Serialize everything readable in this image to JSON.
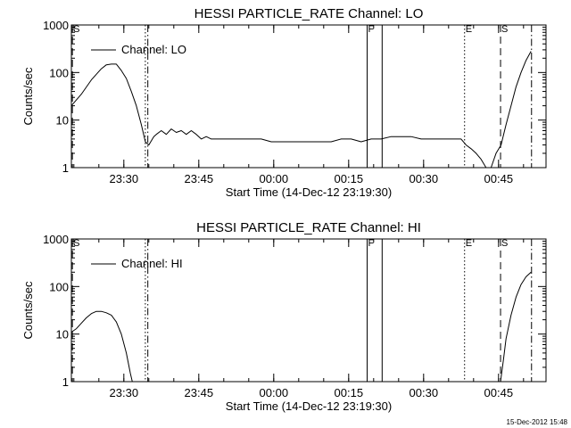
{
  "stamp": "15-Dec-2012 15:48",
  "chart_data": [
    {
      "type": "line",
      "title": "HESSI PARTICLE_RATE Channel: LO",
      "xlabel": "Start Time (14-Dec-12 23:19:30)",
      "ylabel": "Counts/sec",
      "y_scale": "log",
      "ylim": [
        1,
        1000
      ],
      "xlim_minutes": [
        0,
        95
      ],
      "x_ticks": [
        {
          "m": 10.5,
          "label": "23:30"
        },
        {
          "m": 25.5,
          "label": "23:45"
        },
        {
          "m": 40.5,
          "label": "00:00"
        },
        {
          "m": 55.5,
          "label": "00:15"
        },
        {
          "m": 70.5,
          "label": "00:30"
        },
        {
          "m": 85.5,
          "label": "00:45"
        }
      ],
      "y_ticks": [
        {
          "v": 1,
          "label": "1"
        },
        {
          "v": 10,
          "label": "10"
        },
        {
          "v": 100,
          "label": "100"
        },
        {
          "v": 1000,
          "label": "1000"
        }
      ],
      "legend": {
        "label": "Channel: LO",
        "position": "top-left"
      },
      "markers": [
        {
          "m": 0.2,
          "label": "S",
          "style": "dashed"
        },
        {
          "m": 15.3,
          "label": "",
          "style": "dashdot"
        },
        {
          "m": 14.8,
          "label": "",
          "style": "dotted"
        },
        {
          "m": 59.2,
          "label": "F",
          "style": "solid"
        },
        {
          "m": 62.2,
          "label": "",
          "style": "solid"
        },
        {
          "m": 78.7,
          "label": "E",
          "style": "dotted"
        },
        {
          "m": 85.9,
          "label": "S",
          "style": "dashed"
        },
        {
          "m": 92.1,
          "label": "",
          "style": "dashdot"
        }
      ],
      "series": [
        {
          "x": [
            0,
            2,
            4,
            6,
            7,
            8,
            9,
            10,
            11,
            12,
            13,
            14,
            14.8,
            15.5,
            16.5,
            17,
            18,
            19,
            20,
            21,
            22,
            23,
            24,
            25,
            26,
            27,
            28,
            30,
            32,
            34,
            36,
            38,
            40,
            42,
            44,
            46,
            48,
            50,
            52,
            54,
            56,
            58,
            60,
            62,
            64,
            66,
            68,
            70,
            72,
            74,
            76,
            78,
            79,
            80,
            81,
            82,
            83,
            84,
            85,
            86,
            87,
            88,
            89,
            90,
            91,
            92
          ],
          "y": [
            20,
            35,
            70,
            120,
            145,
            150,
            150,
            110,
            75,
            40,
            20,
            8,
            3.5,
            3,
            4.5,
            5,
            6,
            5,
            6.5,
            5.5,
            6,
            5,
            6,
            5,
            4,
            4.5,
            4,
            4,
            4,
            4,
            4,
            4,
            3.5,
            3.5,
            3.5,
            3.5,
            3.5,
            3.5,
            3.5,
            4,
            4,
            3.5,
            4,
            4,
            4.5,
            4.5,
            4.5,
            4,
            4,
            4,
            4,
            4,
            3,
            2.5,
            2,
            1.5,
            1,
            1,
            2,
            3,
            8,
            20,
            50,
            100,
            180,
            280
          ]
        }
      ]
    },
    {
      "type": "line",
      "title": "HESSI PARTICLE_RATE Channel: HI",
      "xlabel": "Start Time (14-Dec-12 23:19:30)",
      "ylabel": "Counts/sec",
      "y_scale": "log",
      "ylim": [
        1,
        1000
      ],
      "xlim_minutes": [
        0,
        95
      ],
      "x_ticks": [
        {
          "m": 10.5,
          "label": "23:30"
        },
        {
          "m": 25.5,
          "label": "23:45"
        },
        {
          "m": 40.5,
          "label": "00:00"
        },
        {
          "m": 55.5,
          "label": "00:15"
        },
        {
          "m": 70.5,
          "label": "00:30"
        },
        {
          "m": 85.5,
          "label": "00:45"
        }
      ],
      "y_ticks": [
        {
          "v": 1,
          "label": "1"
        },
        {
          "v": 10,
          "label": "10"
        },
        {
          "v": 100,
          "label": "100"
        },
        {
          "v": 1000,
          "label": "1000"
        }
      ],
      "legend": {
        "label": "Channel: HI",
        "position": "top-left"
      },
      "markers": [
        {
          "m": 0.2,
          "label": "S",
          "style": "dashed"
        },
        {
          "m": 15.3,
          "label": "",
          "style": "dashdot"
        },
        {
          "m": 14.8,
          "label": "",
          "style": "dotted"
        },
        {
          "m": 59.2,
          "label": "F",
          "style": "solid"
        },
        {
          "m": 62.2,
          "label": "",
          "style": "solid"
        },
        {
          "m": 78.7,
          "label": "E",
          "style": "dotted"
        },
        {
          "m": 85.9,
          "label": "S",
          "style": "dashed"
        },
        {
          "m": 92.1,
          "label": "",
          "style": "dashdot"
        }
      ],
      "series": [
        {
          "x": [
            0,
            1,
            2,
            3,
            4,
            5,
            6,
            7,
            8,
            9,
            10,
            11,
            11.8,
            12.2,
            85.9,
            86.5,
            87,
            88,
            89,
            90,
            91,
            92
          ],
          "y": [
            11,
            13,
            17,
            22,
            27,
            30,
            30,
            28,
            25,
            18,
            10,
            4,
            1.5,
            1,
            1,
            3,
            8,
            25,
            60,
            110,
            160,
            200
          ]
        }
      ]
    }
  ]
}
